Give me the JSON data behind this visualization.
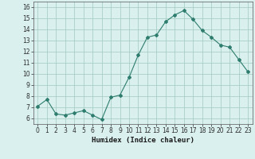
{
  "x": [
    0,
    1,
    2,
    3,
    4,
    5,
    6,
    7,
    8,
    9,
    10,
    11,
    12,
    13,
    14,
    15,
    16,
    17,
    18,
    19,
    20,
    21,
    22,
    23
  ],
  "y": [
    7.1,
    7.7,
    6.4,
    6.3,
    6.5,
    6.7,
    6.3,
    5.9,
    7.9,
    8.1,
    9.7,
    11.7,
    13.3,
    13.5,
    14.7,
    15.3,
    15.7,
    14.9,
    13.9,
    13.3,
    12.6,
    12.4,
    11.3,
    10.2
  ],
  "line_color": "#2e7d6e",
  "marker": "D",
  "marker_size": 2.0,
  "bg_color": "#d9f0ee",
  "grid_color": "#a0c8c0",
  "xlabel": "Humidex (Indice chaleur)",
  "xlim": [
    -0.5,
    23.5
  ],
  "ylim": [
    5.5,
    16.5
  ],
  "yticks": [
    6,
    7,
    8,
    9,
    10,
    11,
    12,
    13,
    14,
    15,
    16
  ],
  "xticks": [
    0,
    1,
    2,
    3,
    4,
    5,
    6,
    7,
    8,
    9,
    10,
    11,
    12,
    13,
    14,
    15,
    16,
    17,
    18,
    19,
    20,
    21,
    22,
    23
  ],
  "xtick_labels": [
    "0",
    "1",
    "2",
    "3",
    "4",
    "5",
    "6",
    "7",
    "8",
    "9",
    "10",
    "11",
    "12",
    "13",
    "14",
    "15",
    "16",
    "17",
    "18",
    "19",
    "20",
    "21",
    "22",
    "23"
  ],
  "ytick_labels": [
    "6",
    "7",
    "8",
    "9",
    "10",
    "11",
    "12",
    "13",
    "14",
    "15",
    "16"
  ],
  "tick_fontsize": 5.5,
  "xlabel_fontsize": 6.5,
  "linewidth": 0.8
}
